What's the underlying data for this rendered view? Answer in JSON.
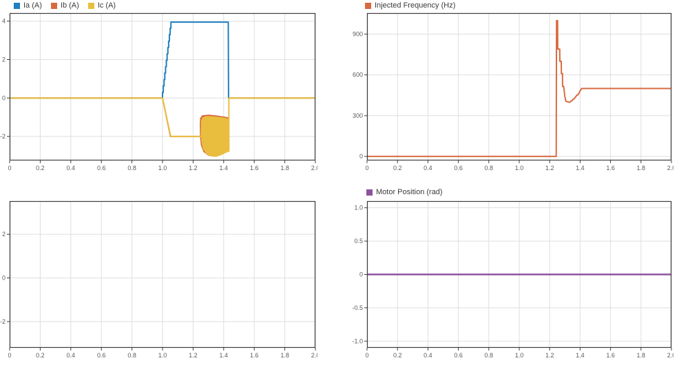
{
  "palette": {
    "background": "#ffffff",
    "axis_color": "#3c3c3c",
    "grid_color": "#dedede",
    "tick_label_color": "#5a5a5a",
    "legend_text_color": "#3a3a3a",
    "series_blue": "#1f7fbf",
    "series_orange": "#d96a40",
    "series_yellow": "#e9be3e",
    "series_purple": "#8e529f"
  },
  "chart_data": [
    {
      "type": "line",
      "title": "",
      "legend": [
        {
          "label": "Ia (A)",
          "color": "#1f7fbf"
        },
        {
          "label": "Ib (A)",
          "color": "#d96a40"
        },
        {
          "label": "Ic (A)",
          "color": "#e9be3e"
        }
      ],
      "legend_position": "top",
      "grid": true,
      "xlim": [
        0,
        2
      ],
      "ylim": [
        -3.25,
        4.42
      ],
      "xticks": [
        0,
        0.2,
        0.4,
        0.6,
        0.8,
        1,
        1.2,
        1.4,
        1.6,
        1.8,
        2
      ],
      "xtick_labels": [
        "0",
        "0.2",
        "0.4",
        "0.6",
        "0.8",
        "1.0",
        "1.2",
        "1.4",
        "1.6",
        "1.8",
        "2.0"
      ],
      "yticks": [
        -2,
        0,
        2,
        4
      ],
      "ytick_labels": [
        "-2",
        "0",
        "2",
        "4"
      ],
      "series": [
        {
          "name": "Ia (A)",
          "color": "#1f7fbf",
          "width": 2,
          "segments": [
            [
              [
                0,
                0
              ],
              [
                1,
                0
              ],
              [
                1,
                0.3
              ],
              [
                1.005,
                0.3
              ],
              [
                1.005,
                0.63
              ],
              [
                1.01,
                0.63
              ],
              [
                1.01,
                0.96
              ],
              [
                1.015,
                0.96
              ],
              [
                1.015,
                1.3
              ],
              [
                1.02,
                1.3
              ],
              [
                1.02,
                1.63
              ],
              [
                1.025,
                1.63
              ],
              [
                1.025,
                1.96
              ],
              [
                1.03,
                1.96
              ],
              [
                1.03,
                2.3
              ],
              [
                1.035,
                2.3
              ],
              [
                1.035,
                2.63
              ],
              [
                1.04,
                2.63
              ],
              [
                1.04,
                2.96
              ],
              [
                1.045,
                2.96
              ],
              [
                1.045,
                3.3
              ],
              [
                1.05,
                3.3
              ],
              [
                1.05,
                3.63
              ],
              [
                1.055,
                3.63
              ],
              [
                1.055,
                3.95
              ],
              [
                1.43,
                3.95
              ],
              [
                1.432,
                0
              ],
              [
                2,
                0
              ]
            ]
          ]
        },
        {
          "name": "Ib (A)",
          "color": "#d96a40",
          "width": 2,
          "segments": [
            [
              [
                0,
                0
              ],
              [
                1,
                0
              ],
              [
                1.052,
                -2
              ],
              [
                1.25,
                -2
              ]
            ],
            [
              [
                1.434,
                0
              ],
              [
                2,
                0
              ]
            ]
          ],
          "polygons": [
            [
              [
                1.246,
                -1.35
              ],
              [
                1.248,
                -1.05
              ],
              [
                1.26,
                -0.92
              ],
              [
                1.3,
                -0.88
              ],
              [
                1.35,
                -0.92
              ],
              [
                1.4,
                -0.98
              ],
              [
                1.428,
                -1.02
              ],
              [
                1.43,
                -2.7
              ],
              [
                1.4,
                -2.85
              ],
              [
                1.37,
                -2.95
              ],
              [
                1.34,
                -3.02
              ],
              [
                1.3,
                -2.98
              ],
              [
                1.27,
                -2.8
              ],
              [
                1.253,
                -2.45
              ],
              [
                1.247,
                -2
              ]
            ]
          ]
        },
        {
          "name": "Ic (A)",
          "color": "#e9be3e",
          "width": 2,
          "segments": [
            [
              [
                0,
                0
              ],
              [
                1,
                0
              ],
              [
                1.003,
                -0.12
              ],
              [
                1.052,
                -1.95
              ],
              [
                1.056,
                -2
              ],
              [
                1.265,
                -2
              ]
            ],
            [
              [
                1.434,
                -2.8
              ],
              [
                1.434,
                0
              ],
              [
                2,
                0
              ]
            ]
          ],
          "polygons": [
            [
              [
                1.252,
                -1.9
              ],
              [
                1.254,
                -1.2
              ],
              [
                1.262,
                -1.02
              ],
              [
                1.29,
                -0.95
              ],
              [
                1.33,
                -0.97
              ],
              [
                1.37,
                -1
              ],
              [
                1.41,
                -1.05
              ],
              [
                1.43,
                -1.1
              ],
              [
                1.432,
                -2.78
              ],
              [
                1.41,
                -2.85
              ],
              [
                1.385,
                -2.95
              ],
              [
                1.35,
                -3.05
              ],
              [
                1.315,
                -3.02
              ],
              [
                1.285,
                -2.88
              ],
              [
                1.266,
                -2.62
              ],
              [
                1.257,
                -2.3
              ]
            ]
          ]
        }
      ]
    },
    {
      "type": "line",
      "title": "",
      "legend": [
        {
          "label": "Injected Frequency (Hz)",
          "color": "#d96a40"
        }
      ],
      "legend_position": "top",
      "grid": true,
      "xlim": [
        0,
        2
      ],
      "ylim": [
        -30,
        1055
      ],
      "xticks": [
        0,
        0.2,
        0.4,
        0.6,
        0.8,
        1,
        1.2,
        1.4,
        1.6,
        1.8,
        2
      ],
      "xtick_labels": [
        "0",
        "0.2",
        "0.4",
        "0.6",
        "0.8",
        "1.0",
        "1.2",
        "1.4",
        "1.6",
        "1.8",
        "2.0"
      ],
      "yticks": [
        0,
        300,
        600,
        900
      ],
      "ytick_labels": [
        "0",
        "300",
        "600",
        "900"
      ],
      "series": [
        {
          "name": "Injected Frequency (Hz)",
          "color": "#d96a40",
          "width": 2,
          "segments": [
            [
              [
                0,
                0
              ],
              [
                1.243,
                0
              ],
              [
                1.245,
                1000
              ],
              [
                1.252,
                1000
              ],
              [
                1.253,
                790
              ],
              [
                1.266,
                790
              ],
              [
                1.267,
                700
              ],
              [
                1.276,
                700
              ],
              [
                1.277,
                610
              ],
              [
                1.284,
                610
              ],
              [
                1.285,
                515
              ],
              [
                1.292,
                515
              ],
              [
                1.3,
                440
              ],
              [
                1.307,
                405
              ],
              [
                1.33,
                398
              ],
              [
                1.34,
                408
              ],
              [
                1.345,
                408
              ],
              [
                1.355,
                422
              ],
              [
                1.36,
                422
              ],
              [
                1.37,
                438
              ],
              [
                1.38,
                452
              ],
              [
                1.385,
                452
              ],
              [
                1.395,
                470
              ],
              [
                1.4,
                483
              ],
              [
                1.41,
                500
              ],
              [
                2,
                500
              ]
            ]
          ]
        }
      ]
    },
    {
      "type": "line",
      "title": "",
      "legend": [],
      "legend_position": "top",
      "grid": true,
      "xlim": [
        0,
        2
      ],
      "ylim": [
        -3.2,
        3.52
      ],
      "xticks": [
        0,
        0.2,
        0.4,
        0.6,
        0.8,
        1,
        1.2,
        1.4,
        1.6,
        1.8,
        2
      ],
      "xtick_labels": [
        "0",
        "0.2",
        "0.4",
        "0.6",
        "0.8",
        "1.0",
        "1.2",
        "1.4",
        "1.6",
        "1.8",
        "2.0"
      ],
      "yticks": [
        -2,
        0,
        2
      ],
      "ytick_labels": [
        "-2",
        "0",
        "2"
      ],
      "series": []
    },
    {
      "type": "line",
      "title": "",
      "legend": [
        {
          "label": "Motor Position (rad)",
          "color": "#8e529f"
        }
      ],
      "legend_position": "top",
      "grid": true,
      "xlim": [
        0,
        2
      ],
      "ylim": [
        -1.1,
        1.1
      ],
      "xticks": [
        0,
        0.2,
        0.4,
        0.6,
        0.8,
        1,
        1.2,
        1.4,
        1.6,
        1.8,
        2
      ],
      "xtick_labels": [
        "0",
        "0.2",
        "0.4",
        "0.6",
        "0.8",
        "1.0",
        "1.2",
        "1.4",
        "1.6",
        "1.8",
        "2.0"
      ],
      "yticks": [
        -1,
        -0.5,
        0,
        0.5,
        1
      ],
      "ytick_labels": [
        "-1.0",
        "-0.5",
        "0",
        "0.5",
        "1.0"
      ],
      "series": [
        {
          "name": "Motor Position (rad)",
          "color": "#8e529f",
          "width": 2.5,
          "segments": [
            [
              [
                0,
                0
              ],
              [
                2,
                0
              ]
            ]
          ]
        }
      ]
    }
  ]
}
